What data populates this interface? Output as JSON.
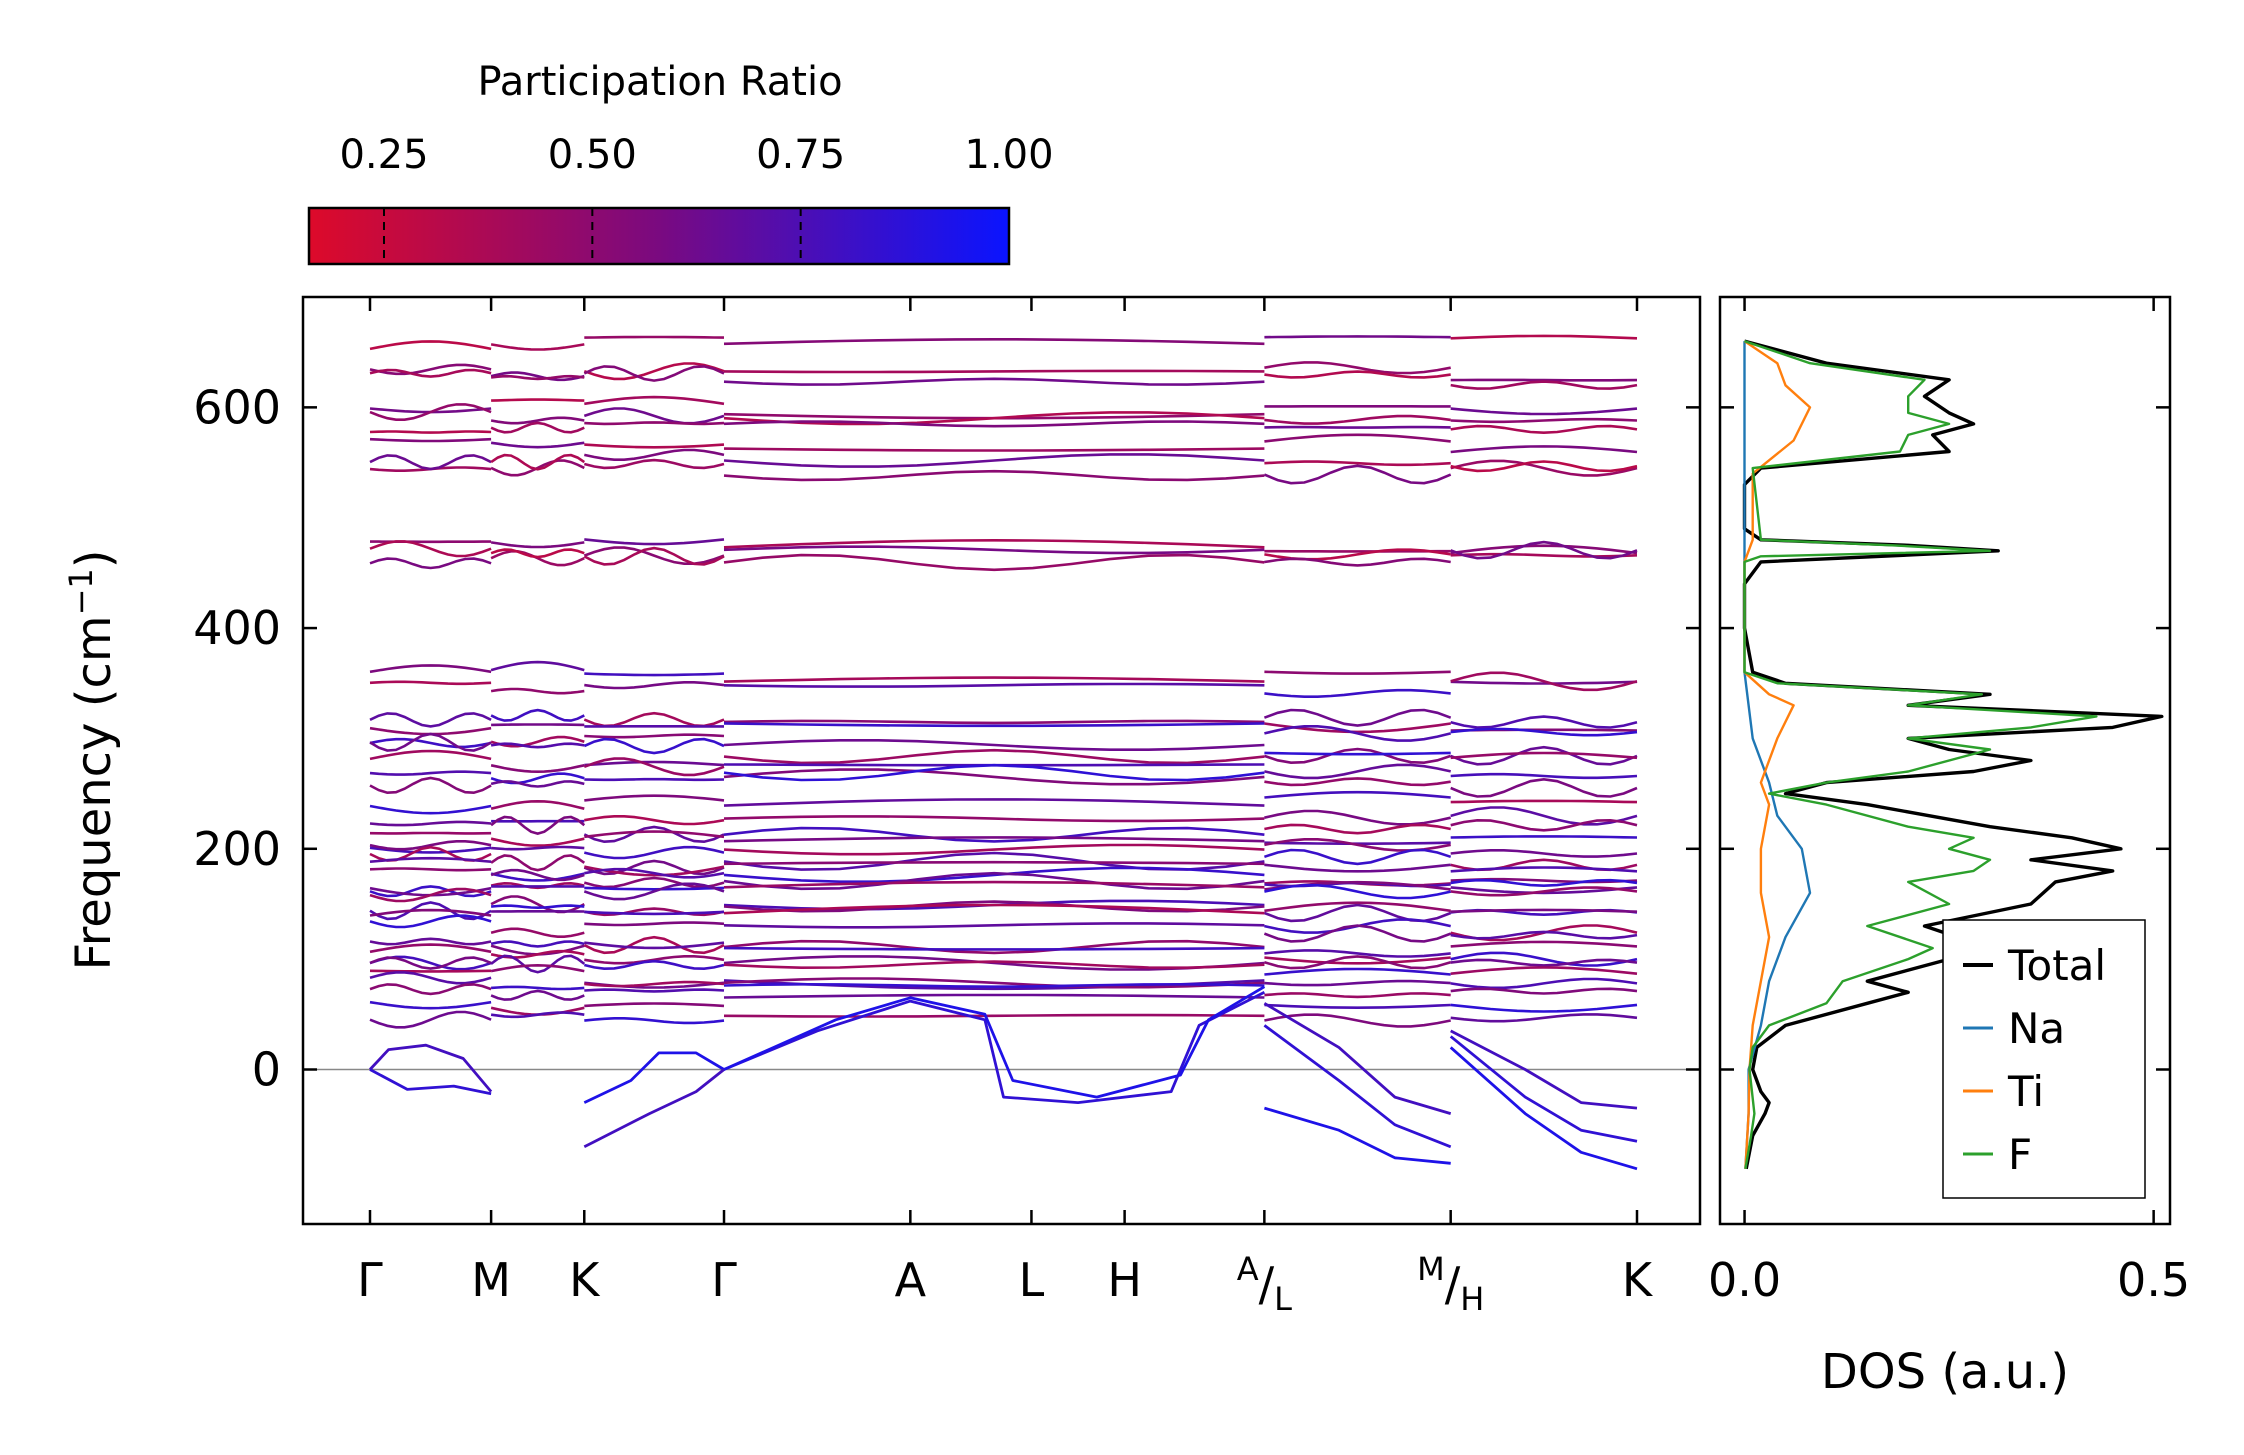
{
  "chart_data": {
    "type": "phonon_band_structure_with_dos",
    "colorbar": {
      "title": "Participation Ratio",
      "ticks": [
        "0.25",
        "0.50",
        "0.75",
        "1.00"
      ],
      "range": [
        0.16,
        1.0
      ],
      "color_low": "#dd0a2a",
      "color_high": "#0a14ff"
    },
    "bands_panel": {
      "ylabel_main": "Frequency (cm",
      "ylabel_sup": "−1",
      "ylabel_close": ")",
      "ylim": [
        -140,
        700
      ],
      "yticks": [
        {
          "label": "0",
          "value": 0
        },
        {
          "label": "200",
          "value": 200
        },
        {
          "label": "400",
          "value": 400
        },
        {
          "label": "600",
          "value": 600
        }
      ],
      "kpath": [
        {
          "main": "Γ",
          "pos": 0.0
        },
        {
          "main": "M",
          "pos": 0.65
        },
        {
          "main": "K",
          "pos": 1.15
        },
        {
          "main": "Γ",
          "pos": 1.9
        },
        {
          "main": "A",
          "pos": 2.9
        },
        {
          "main": "L",
          "pos": 3.55
        },
        {
          "main": "H",
          "pos": 4.05
        },
        {
          "main": "L",
          "sup": "A",
          "pos": 4.8
        },
        {
          "main": "H",
          "sup": "M",
          "pos": 5.8
        },
        {
          "main": "K",
          "pos": 6.8
        }
      ],
      "segment_breaks": [
        0.65,
        1.15,
        1.9,
        4.8,
        5.8
      ],
      "flat_band_levels": [
        660,
        630,
        625,
        600,
        590,
        580,
        565,
        550,
        545,
        475,
        470,
        465,
        355,
        345,
        315,
        310,
        300,
        290,
        280,
        270,
        262,
        240,
        225,
        215,
        205,
        198,
        190,
        182,
        175,
        165,
        160,
        155,
        148,
        140,
        130,
        118,
        108,
        100,
        92,
        85,
        78,
        70,
        60,
        50
      ],
      "acoustic_bands": [
        {
          "name": "gamma-m-imag",
          "points": [
            [
              0,
              0
            ],
            [
              0.1,
              18
            ],
            [
              0.3,
              22
            ],
            [
              0.5,
              10
            ],
            [
              0.65,
              -20
            ]
          ]
        },
        {
          "name": "gamma-m-low",
          "points": [
            [
              0,
              0
            ],
            [
              0.2,
              -18
            ],
            [
              0.45,
              -15
            ],
            [
              0.65,
              -22
            ]
          ]
        },
        {
          "name": "k-gamma-1",
          "points": [
            [
              1.15,
              -30
            ],
            [
              1.4,
              -10
            ],
            [
              1.55,
              15
            ],
            [
              1.75,
              15
            ],
            [
              1.9,
              0
            ]
          ]
        },
        {
          "name": "k-gamma-2",
          "points": [
            [
              1.15,
              -70
            ],
            [
              1.5,
              -40
            ],
            [
              1.75,
              -20
            ],
            [
              1.9,
              0
            ]
          ]
        },
        {
          "name": "gamma-a-1",
          "points": [
            [
              1.9,
              0
            ],
            [
              2.4,
              35
            ],
            [
              2.9,
              62
            ],
            [
              3.3,
              45
            ],
            [
              3.4,
              -25
            ],
            [
              3.8,
              -30
            ],
            [
              4.3,
              -20
            ],
            [
              4.45,
              40
            ],
            [
              4.8,
              70
            ]
          ]
        },
        {
          "name": "gamma-a-2",
          "points": [
            [
              1.9,
              0
            ],
            [
              2.5,
              45
            ],
            [
              2.9,
              65
            ],
            [
              3.3,
              50
            ],
            [
              3.45,
              -10
            ],
            [
              3.9,
              -25
            ],
            [
              4.35,
              -5
            ],
            [
              4.5,
              45
            ],
            [
              4.8,
              75
            ]
          ]
        },
        {
          "name": "a-m-1",
          "points": [
            [
              4.8,
              60
            ],
            [
              5.2,
              20
            ],
            [
              5.5,
              -25
            ],
            [
              5.8,
              -40
            ]
          ]
        },
        {
          "name": "a-m-2",
          "points": [
            [
              4.8,
              40
            ],
            [
              5.2,
              -10
            ],
            [
              5.5,
              -50
            ],
            [
              5.8,
              -70
            ]
          ]
        },
        {
          "name": "a-m-3",
          "points": [
            [
              4.8,
              -35
            ],
            [
              5.2,
              -55
            ],
            [
              5.5,
              -80
            ],
            [
              5.8,
              -85
            ]
          ]
        },
        {
          "name": "h-k-1",
          "points": [
            [
              5.8,
              35
            ],
            [
              6.2,
              0
            ],
            [
              6.5,
              -30
            ],
            [
              6.8,
              -35
            ]
          ]
        },
        {
          "name": "h-k-2",
          "points": [
            [
              5.8,
              30
            ],
            [
              6.2,
              -25
            ],
            [
              6.5,
              -55
            ],
            [
              6.8,
              -65
            ]
          ]
        },
        {
          "name": "h-k-3",
          "points": [
            [
              5.8,
              20
            ],
            [
              6.2,
              -40
            ],
            [
              6.5,
              -75
            ],
            [
              6.8,
              -90
            ]
          ]
        }
      ],
      "zero_line": 0
    },
    "dos_panel": {
      "xlabel": "DOS (a.u.)",
      "xlim": [
        -0.03,
        0.52
      ],
      "xticks": [
        {
          "label": "0.0",
          "value": 0.0
        },
        {
          "label": "0.5",
          "value": 0.5
        }
      ],
      "series": [
        {
          "name": "Total",
          "color": "#000000",
          "points": [
            [
              -90,
              0.002
            ],
            [
              -60,
              0.01
            ],
            [
              -40,
              0.025
            ],
            [
              -30,
              0.03
            ],
            [
              -20,
              0.02
            ],
            [
              0,
              0.01
            ],
            [
              20,
              0.015
            ],
            [
              40,
              0.05
            ],
            [
              60,
              0.15
            ],
            [
              70,
              0.2
            ],
            [
              80,
              0.15
            ],
            [
              100,
              0.25
            ],
            [
              110,
              0.3
            ],
            [
              130,
              0.22
            ],
            [
              150,
              0.35
            ],
            [
              170,
              0.38
            ],
            [
              180,
              0.45
            ],
            [
              190,
              0.35
            ],
            [
              200,
              0.46
            ],
            [
              210,
              0.4
            ],
            [
              220,
              0.3
            ],
            [
              240,
              0.15
            ],
            [
              250,
              0.05
            ],
            [
              260,
              0.1
            ],
            [
              270,
              0.28
            ],
            [
              280,
              0.35
            ],
            [
              290,
              0.25
            ],
            [
              300,
              0.2
            ],
            [
              310,
              0.45
            ],
            [
              320,
              0.51
            ],
            [
              330,
              0.2
            ],
            [
              340,
              0.3
            ],
            [
              350,
              0.05
            ],
            [
              360,
              0.01
            ],
            [
              400,
              0.0
            ],
            [
              440,
              0.0
            ],
            [
              460,
              0.02
            ],
            [
              470,
              0.31
            ],
            [
              475,
              0.2
            ],
            [
              480,
              0.02
            ],
            [
              490,
              0.0
            ],
            [
              530,
              0.0
            ],
            [
              545,
              0.02
            ],
            [
              560,
              0.25
            ],
            [
              575,
              0.23
            ],
            [
              585,
              0.28
            ],
            [
              595,
              0.25
            ],
            [
              610,
              0.22
            ],
            [
              625,
              0.25
            ],
            [
              640,
              0.1
            ],
            [
              660,
              0.0
            ]
          ]
        },
        {
          "name": "Na",
          "color": "#1f77b4",
          "points": [
            [
              -90,
              0.001
            ],
            [
              -40,
              0.005
            ],
            [
              0,
              0.005
            ],
            [
              40,
              0.02
            ],
            [
              80,
              0.03
            ],
            [
              120,
              0.05
            ],
            [
              160,
              0.08
            ],
            [
              200,
              0.07
            ],
            [
              230,
              0.04
            ],
            [
              260,
              0.03
            ],
            [
              300,
              0.01
            ],
            [
              360,
              0.0
            ],
            [
              460,
              0.0
            ],
            [
              540,
              0.0
            ],
            [
              600,
              0.0
            ],
            [
              660,
              0.0
            ]
          ]
        },
        {
          "name": "Ti",
          "color": "#ff7f0e",
          "points": [
            [
              -90,
              0.001
            ],
            [
              -40,
              0.005
            ],
            [
              0,
              0.006
            ],
            [
              40,
              0.01
            ],
            [
              80,
              0.02
            ],
            [
              120,
              0.03
            ],
            [
              160,
              0.02
            ],
            [
              200,
              0.02
            ],
            [
              240,
              0.03
            ],
            [
              260,
              0.02
            ],
            [
              300,
              0.04
            ],
            [
              330,
              0.06
            ],
            [
              340,
              0.03
            ],
            [
              360,
              0.0
            ],
            [
              460,
              0.0
            ],
            [
              480,
              0.01
            ],
            [
              540,
              0.01
            ],
            [
              570,
              0.06
            ],
            [
              600,
              0.08
            ],
            [
              620,
              0.05
            ],
            [
              640,
              0.04
            ],
            [
              660,
              0.0
            ]
          ]
        },
        {
          "name": "F",
          "color": "#2ca02c",
          "points": [
            [
              -90,
              0.001
            ],
            [
              -60,
              0.008
            ],
            [
              -40,
              0.012
            ],
            [
              0,
              0.006
            ],
            [
              20,
              0.01
            ],
            [
              40,
              0.03
            ],
            [
              60,
              0.1
            ],
            [
              80,
              0.12
            ],
            [
              100,
              0.2
            ],
            [
              110,
              0.23
            ],
            [
              130,
              0.15
            ],
            [
              150,
              0.25
            ],
            [
              170,
              0.2
            ],
            [
              180,
              0.28
            ],
            [
              190,
              0.3
            ],
            [
              200,
              0.25
            ],
            [
              210,
              0.28
            ],
            [
              220,
              0.2
            ],
            [
              240,
              0.1
            ],
            [
              250,
              0.03
            ],
            [
              260,
              0.1
            ],
            [
              270,
              0.2
            ],
            [
              290,
              0.3
            ],
            [
              300,
              0.2
            ],
            [
              310,
              0.35
            ],
            [
              320,
              0.43
            ],
            [
              330,
              0.2
            ],
            [
              340,
              0.29
            ],
            [
              350,
              0.04
            ],
            [
              360,
              0.0
            ],
            [
              460,
              0.0
            ],
            [
              465,
              0.02
            ],
            [
              470,
              0.3
            ],
            [
              475,
              0.18
            ],
            [
              480,
              0.02
            ],
            [
              545,
              0.01
            ],
            [
              560,
              0.19
            ],
            [
              575,
              0.2
            ],
            [
              585,
              0.25
            ],
            [
              595,
              0.2
            ],
            [
              610,
              0.2
            ],
            [
              625,
              0.22
            ],
            [
              640,
              0.08
            ],
            [
              660,
              0.0
            ]
          ]
        }
      ]
    }
  }
}
